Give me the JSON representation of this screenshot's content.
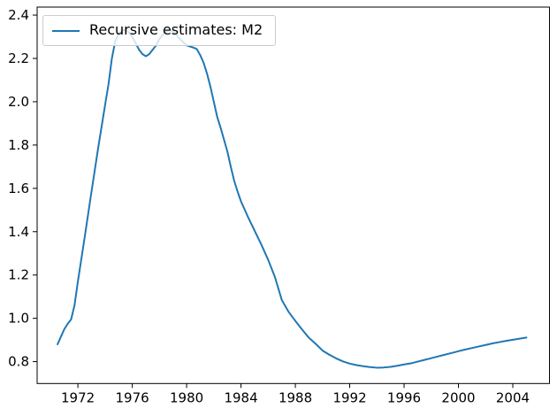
{
  "figure": {
    "background": "#ffffff"
  },
  "legend": {
    "label": "Recursive estimates: M2",
    "swatch_color": "#1f77b4"
  },
  "chart_data": {
    "type": "line",
    "title": "",
    "xlabel": "",
    "ylabel": "",
    "xlim": [
      1969.0,
      2006.7
    ],
    "ylim": [
      0.699,
      2.437
    ],
    "x_ticks": [
      1972,
      1976,
      1980,
      1984,
      1988,
      1992,
      1996,
      2000,
      2004
    ],
    "x_tick_labels": [
      "1972",
      "1976",
      "1980",
      "1984",
      "1988",
      "1992",
      "1996",
      "2000",
      "2004"
    ],
    "y_ticks": [
      0.8,
      1.0,
      1.2,
      1.4,
      1.6,
      1.8,
      2.0,
      2.2,
      2.4
    ],
    "y_tick_labels": [
      "0.8",
      "1.0",
      "1.2",
      "1.4",
      "1.6",
      "1.8",
      "2.0",
      "2.2",
      "2.4"
    ],
    "grid": false,
    "legend_position": "upper-left",
    "axis_color": "#000000",
    "series": [
      {
        "name": "Recursive estimates: M2",
        "color": "#1f77b4",
        "line_width": 2,
        "x": [
          1970.5,
          1970.75,
          1971,
          1971.25,
          1971.5,
          1971.75,
          1972,
          1972.5,
          1973,
          1973.5,
          1974,
          1974.25,
          1974.5,
          1974.75,
          1975,
          1975.25,
          1975.5,
          1975.75,
          1976,
          1976.25,
          1976.5,
          1976.75,
          1977,
          1977.25,
          1977.5,
          1977.75,
          1978,
          1978.25,
          1978.5,
          1978.75,
          1979,
          1979.25,
          1979.5,
          1979.75,
          1980,
          1980.25,
          1980.5,
          1980.75,
          1981,
          1981.25,
          1981.5,
          1981.75,
          1982,
          1982.25,
          1982.5,
          1982.75,
          1983,
          1983.25,
          1983.5,
          1983.75,
          1984,
          1984.5,
          1985,
          1985.5,
          1986,
          1986.5,
          1987,
          1987.5,
          1988,
          1988.5,
          1989,
          1989.5,
          1990,
          1990.5,
          1991,
          1991.5,
          1992,
          1992.5,
          1993,
          1993.5,
          1994,
          1994.5,
          1995,
          1995.5,
          1996,
          1996.5,
          1997,
          1997.5,
          1998,
          1998.5,
          1999,
          1999.5,
          2000,
          2000.5,
          2001,
          2001.5,
          2002,
          2002.5,
          2003,
          2003.5,
          2004,
          2004.5,
          2005
        ],
        "y": [
          0.88,
          0.915,
          0.95,
          0.975,
          0.995,
          1.06,
          1.17,
          1.375,
          1.585,
          1.79,
          1.985,
          2.08,
          2.2,
          2.28,
          2.315,
          2.33,
          2.33,
          2.32,
          2.3,
          2.27,
          2.24,
          2.22,
          2.21,
          2.22,
          2.24,
          2.26,
          2.29,
          2.31,
          2.325,
          2.33,
          2.325,
          2.31,
          2.29,
          2.275,
          2.26,
          2.255,
          2.25,
          2.243,
          2.215,
          2.18,
          2.13,
          2.07,
          2.0,
          1.93,
          1.88,
          1.825,
          1.77,
          1.7,
          1.635,
          1.585,
          1.54,
          1.47,
          1.405,
          1.34,
          1.27,
          1.19,
          1.085,
          1.03,
          0.988,
          0.948,
          0.91,
          0.882,
          0.851,
          0.832,
          0.815,
          0.801,
          0.791,
          0.784,
          0.779,
          0.775,
          0.772,
          0.773,
          0.776,
          0.781,
          0.787,
          0.792,
          0.8,
          0.808,
          0.816,
          0.824,
          0.832,
          0.84,
          0.848,
          0.856,
          0.863,
          0.87,
          0.877,
          0.884,
          0.89,
          0.896,
          0.901,
          0.906,
          0.911
        ]
      }
    ]
  }
}
